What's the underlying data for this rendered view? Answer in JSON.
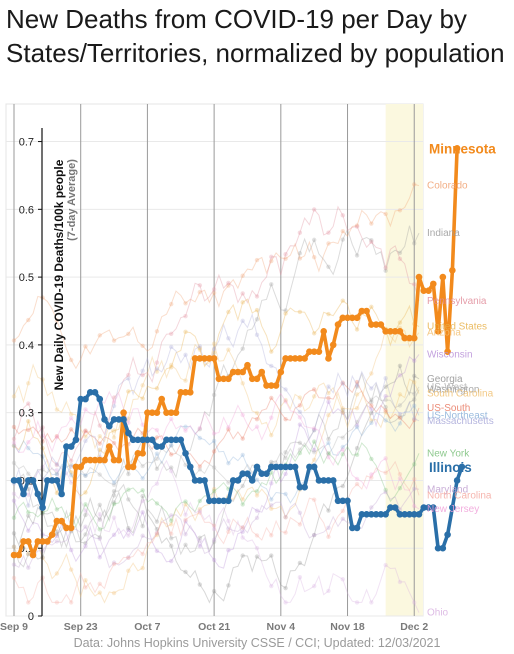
{
  "chart_data": {
    "type": "line",
    "title": "New Deaths from COVID-19 per Day by States/Territories, normalized by population",
    "ylabel": "New Daily COVID-19 Deaths/100k people",
    "ylabel_note": "(7-day Average)",
    "ylim": [
      0,
      0.72
    ],
    "yticks": [
      0,
      0.1,
      0.2,
      0.3,
      0.4,
      0.5,
      0.6,
      0.7
    ],
    "ytick_labels": [
      "0",
      "0.1",
      "0.2",
      "0.3",
      "0.4",
      "0.5",
      "0.6",
      "0.7"
    ],
    "x_start": "2020-09-09",
    "x_end": "2020-12-03",
    "xticks": [
      "2020-09-09",
      "2020-09-23",
      "2020-10-07",
      "2020-10-21",
      "2020-11-04",
      "2020-11-18",
      "2020-12-02"
    ],
    "xtick_labels": [
      "Sep 9",
      "Sep 23",
      "Oct 7",
      "Oct 21",
      "Nov 4",
      "Nov 18",
      "Dec 2"
    ],
    "grid": true,
    "highlight_band": [
      "2020-11-26",
      "2020-12-03"
    ],
    "highlighted_series": [
      {
        "name": "Minnesota",
        "color": "#f28a1c",
        "values": [
          0.09,
          0.09,
          0.11,
          0.11,
          0.09,
          0.11,
          0.11,
          0.11,
          0.12,
          0.14,
          0.14,
          0.13,
          0.13,
          0.22,
          0.22,
          0.23,
          0.23,
          0.23,
          0.23,
          0.23,
          0.25,
          0.23,
          0.23,
          0.3,
          0.22,
          0.22,
          0.24,
          0.24,
          0.3,
          0.3,
          0.3,
          0.32,
          0.3,
          0.3,
          0.3,
          0.33,
          0.33,
          0.33,
          0.38,
          0.38,
          0.38,
          0.38,
          0.38,
          0.35,
          0.35,
          0.35,
          0.36,
          0.36,
          0.36,
          0.37,
          0.35,
          0.35,
          0.36,
          0.34,
          0.34,
          0.34,
          0.36,
          0.38,
          0.38,
          0.38,
          0.38,
          0.38,
          0.39,
          0.39,
          0.39,
          0.42,
          0.38,
          0.4,
          0.43,
          0.44,
          0.44,
          0.44,
          0.44,
          0.45,
          0.45,
          0.43,
          0.43,
          0.43,
          0.42,
          0.42,
          0.42,
          0.42,
          0.41,
          0.41,
          0.41,
          0.5,
          0.48,
          0.48,
          0.49,
          0.42,
          0.5,
          0.39,
          0.51,
          0.69
        ]
      },
      {
        "name": "Illinois",
        "color": "#2a6fa8",
        "values": [
          0.2,
          0.2,
          0.18,
          0.2,
          0.2,
          0.18,
          0.16,
          0.2,
          0.2,
          0.2,
          0.18,
          0.25,
          0.25,
          0.26,
          0.32,
          0.32,
          0.33,
          0.33,
          0.32,
          0.29,
          0.28,
          0.29,
          0.29,
          0.29,
          0.27,
          0.26,
          0.26,
          0.26,
          0.26,
          0.26,
          0.25,
          0.25,
          0.26,
          0.26,
          0.26,
          0.26,
          0.24,
          0.22,
          0.2,
          0.2,
          0.2,
          0.17,
          0.17,
          0.17,
          0.17,
          0.17,
          0.2,
          0.2,
          0.21,
          0.21,
          0.2,
          0.22,
          0.21,
          0.21,
          0.22,
          0.22,
          0.22,
          0.22,
          0.22,
          0.22,
          0.19,
          0.19,
          0.22,
          0.22,
          0.2,
          0.2,
          0.2,
          0.2,
          0.17,
          0.17,
          0.17,
          0.13,
          0.13,
          0.15,
          0.15,
          0.15,
          0.15,
          0.15,
          0.15,
          0.16,
          0.16,
          0.15,
          0.15,
          0.15,
          0.15,
          0.15,
          0.16,
          0.16,
          0.16,
          0.1,
          0.1,
          0.12,
          0.16,
          0.2,
          0.22
        ]
      }
    ],
    "background_series": [
      {
        "name": "Colorado",
        "color": "#f0a070",
        "end_value": 0.635
      },
      {
        "name": "Indiana",
        "color": "#9a9a9a",
        "end_value": 0.565
      },
      {
        "name": "Pennsylvania",
        "color": "#e08c9a",
        "end_value": 0.465
      },
      {
        "name": "United States",
        "color": "#e8b048",
        "end_value": 0.427
      },
      {
        "name": "Arizona",
        "color": "#f2be70",
        "end_value": 0.418
      },
      {
        "name": "Wisconsin",
        "color": "#b890d8",
        "end_value": 0.386
      },
      {
        "name": "Georgia",
        "color": "#909090",
        "end_value": 0.35
      },
      {
        "name": "US-West",
        "color": "#b0b0b0",
        "end_value": 0.338
      },
      {
        "name": "Washington",
        "color": "#9a9a9a",
        "end_value": 0.334
      },
      {
        "name": "South Carolina",
        "color": "#f0c070",
        "end_value": 0.328
      },
      {
        "name": "US-South",
        "color": "#e87860",
        "end_value": 0.307
      },
      {
        "name": "US-Northeast",
        "color": "#8ab0d8",
        "end_value": 0.296
      },
      {
        "name": "Massachusetts",
        "color": "#a8a8d8",
        "end_value": 0.288
      },
      {
        "name": "New York",
        "color": "#7ac07a",
        "end_value": 0.24
      },
      {
        "name": "Maryland",
        "color": "#c0a0d0",
        "end_value": 0.187
      },
      {
        "name": "North Carolina",
        "color": "#f4a8a0",
        "end_value": 0.178
      },
      {
        "name": "New Jersey",
        "color": "#f0a0d8",
        "end_value": 0.158
      },
      {
        "name": "Ohio",
        "color": "#d8b0e0",
        "end_value": 0.005
      }
    ]
  },
  "footer": "Data: Johns Hopkins University CSSE / CCI; Updated: 12/03/2021"
}
